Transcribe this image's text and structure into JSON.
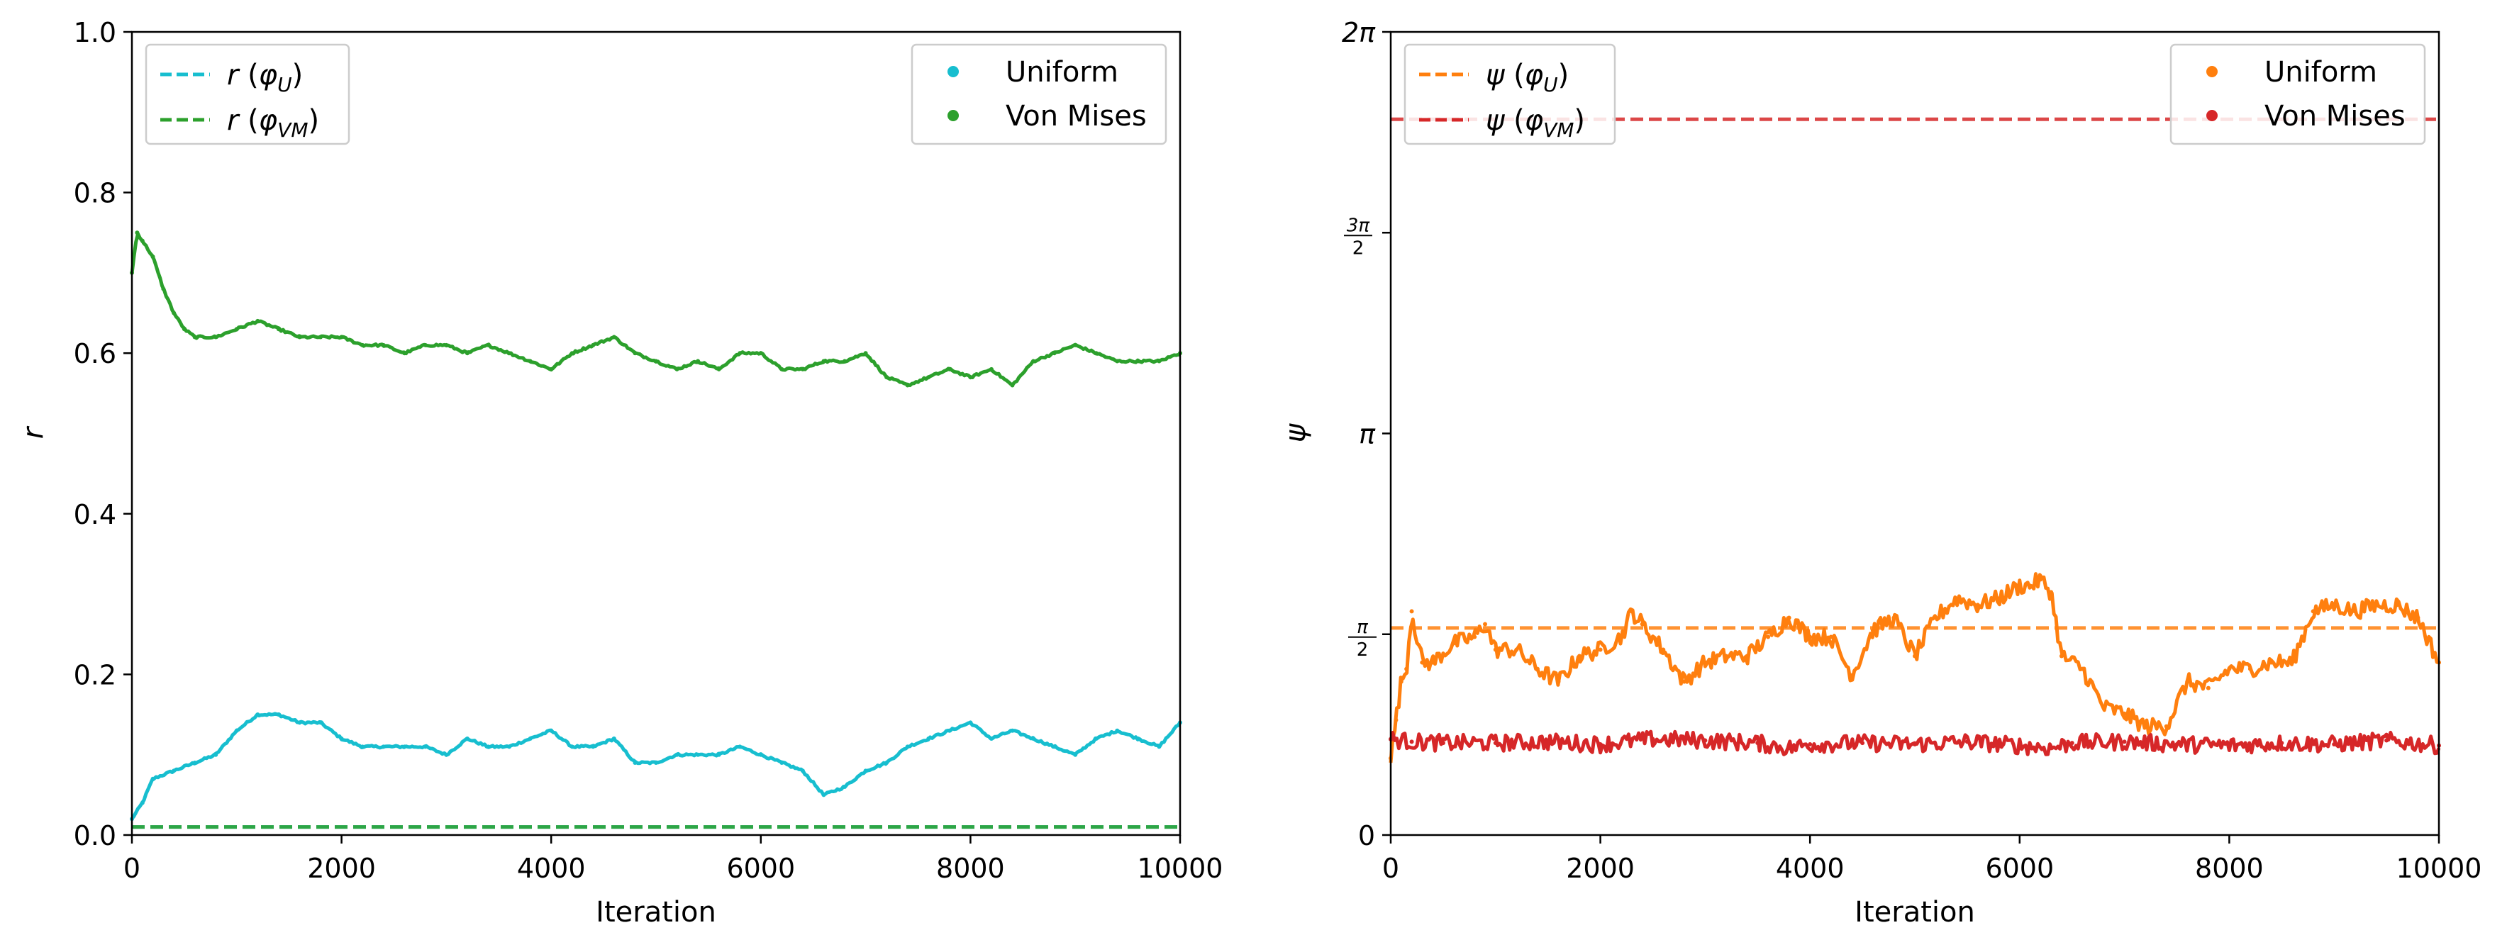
{
  "chart_data": [
    {
      "type": "line",
      "title": "",
      "xlabel": "Iteration",
      "ylabel": "r",
      "xlim": [
        0,
        10000
      ],
      "ylim": [
        0,
        1.0
      ],
      "xticks": [
        0,
        2000,
        4000,
        6000,
        8000,
        10000
      ],
      "xtick_labels": [
        "0",
        "2000",
        "4000",
        "6000",
        "8000",
        "10000"
      ],
      "yticks": [
        0.0,
        0.2,
        0.4,
        0.6,
        0.8,
        1.0
      ],
      "ytick_labels": [
        "0.0",
        "0.2",
        "0.4",
        "0.6",
        "0.8",
        "1.0"
      ],
      "grid": false,
      "series": [
        {
          "name": "Uniform",
          "color": "#17becf",
          "style": "dots",
          "x": [
            0,
            100,
            200,
            400,
            600,
            800,
            1000,
            1200,
            1400,
            1600,
            1800,
            2000,
            2200,
            2400,
            2600,
            2800,
            3000,
            3200,
            3400,
            3600,
            3800,
            4000,
            4200,
            4400,
            4600,
            4800,
            5000,
            5200,
            5400,
            5600,
            5800,
            6000,
            6200,
            6400,
            6600,
            6800,
            7000,
            7200,
            7400,
            7600,
            7800,
            8000,
            8200,
            8400,
            8600,
            8800,
            9000,
            9200,
            9400,
            9600,
            9800,
            10000
          ],
          "y": [
            0.02,
            0.04,
            0.07,
            0.08,
            0.09,
            0.1,
            0.13,
            0.15,
            0.15,
            0.14,
            0.14,
            0.12,
            0.11,
            0.11,
            0.11,
            0.11,
            0.1,
            0.12,
            0.11,
            0.11,
            0.12,
            0.13,
            0.11,
            0.11,
            0.12,
            0.09,
            0.09,
            0.1,
            0.1,
            0.1,
            0.11,
            0.1,
            0.09,
            0.08,
            0.05,
            0.06,
            0.08,
            0.09,
            0.11,
            0.12,
            0.13,
            0.14,
            0.12,
            0.13,
            0.12,
            0.11,
            0.1,
            0.12,
            0.13,
            0.12,
            0.11,
            0.14
          ]
        },
        {
          "name": "Von Mises",
          "color": "#2ca02c",
          "style": "dots",
          "x": [
            0,
            50,
            100,
            200,
            300,
            400,
            500,
            600,
            800,
            1000,
            1200,
            1400,
            1600,
            1800,
            2000,
            2200,
            2400,
            2600,
            2800,
            3000,
            3200,
            3400,
            3600,
            3800,
            4000,
            4200,
            4400,
            4600,
            4800,
            5000,
            5200,
            5400,
            5600,
            5800,
            6000,
            6200,
            6400,
            6600,
            6800,
            7000,
            7200,
            7400,
            7600,
            7800,
            8000,
            8200,
            8400,
            8600,
            8800,
            9000,
            9200,
            9400,
            9600,
            9800,
            10000
          ],
          "y": [
            0.7,
            0.75,
            0.74,
            0.72,
            0.68,
            0.65,
            0.63,
            0.62,
            0.62,
            0.63,
            0.64,
            0.63,
            0.62,
            0.62,
            0.62,
            0.61,
            0.61,
            0.6,
            0.61,
            0.61,
            0.6,
            0.61,
            0.6,
            0.59,
            0.58,
            0.6,
            0.61,
            0.62,
            0.6,
            0.59,
            0.58,
            0.59,
            0.58,
            0.6,
            0.6,
            0.58,
            0.58,
            0.59,
            0.59,
            0.6,
            0.57,
            0.56,
            0.57,
            0.58,
            0.57,
            0.58,
            0.56,
            0.59,
            0.6,
            0.61,
            0.6,
            0.59,
            0.59,
            0.59,
            0.6
          ]
        },
        {
          "name": "r (φU)",
          "color": "#17becf",
          "style": "dashed",
          "x": [
            0,
            10000
          ],
          "y": [
            0.01,
            0.01
          ]
        },
        {
          "name": "r (φVM)",
          "color": "#2ca02c",
          "style": "dashed",
          "x": [
            0,
            10000
          ],
          "y": [
            0.01,
            0.01
          ]
        }
      ],
      "legend_lines": {
        "placement": "upper left",
        "entries": [
          {
            "var": "r",
            "sym": "φ",
            "sub": "U"
          },
          {
            "var": "r",
            "sym": "φ",
            "sub": "VM"
          }
        ]
      },
      "legend_markers": {
        "placement": "upper right",
        "entries": [
          "Uniform",
          "Von Mises"
        ]
      }
    },
    {
      "type": "line",
      "title": "",
      "xlabel": "Iteration",
      "ylabel": "ψ",
      "xlim": [
        0,
        10000
      ],
      "ylim": [
        0,
        6.2832
      ],
      "xticks": [
        0,
        2000,
        4000,
        6000,
        8000,
        10000
      ],
      "xtick_labels": [
        "0",
        "2000",
        "4000",
        "6000",
        "8000",
        "10000"
      ],
      "yticks": [
        0,
        1.5708,
        3.1416,
        4.7124,
        6.2832
      ],
      "ytick_labels": [
        "0",
        "π/2",
        "π",
        "3π/2",
        "2π"
      ],
      "grid": false,
      "series": [
        {
          "name": "Uniform",
          "color": "#ff7f0e",
          "style": "dots",
          "x": [
            0,
            50,
            100,
            150,
            200,
            300,
            400,
            600,
            800,
            900,
            1000,
            1200,
            1400,
            1600,
            1800,
            2000,
            2200,
            2300,
            2400,
            2600,
            2800,
            3000,
            3200,
            3400,
            3600,
            3800,
            4000,
            4200,
            4400,
            4600,
            4800,
            5000,
            5200,
            5400,
            5600,
            5800,
            6000,
            6100,
            6200,
            6300,
            6400,
            6600,
            6800,
            7000,
            7200,
            7400,
            7600,
            7800,
            8000,
            8200,
            8400,
            8600,
            8800,
            9000,
            9200,
            9400,
            9600,
            9800,
            10000
          ],
          "y": [
            0.6,
            0.9,
            1.2,
            1.3,
            1.75,
            1.35,
            1.35,
            1.5,
            1.55,
            1.65,
            1.45,
            1.45,
            1.3,
            1.2,
            1.4,
            1.45,
            1.55,
            1.75,
            1.65,
            1.45,
            1.2,
            1.35,
            1.4,
            1.4,
            1.55,
            1.7,
            1.55,
            1.55,
            1.25,
            1.6,
            1.7,
            1.4,
            1.7,
            1.85,
            1.8,
            1.85,
            1.95,
            1.95,
            2.0,
            1.9,
            1.4,
            1.3,
            1.0,
            0.95,
            0.85,
            0.85,
            1.2,
            1.15,
            1.3,
            1.3,
            1.35,
            1.35,
            1.75,
            1.8,
            1.75,
            1.8,
            1.8,
            1.7,
            1.35
          ]
        },
        {
          "name": "Von Mises",
          "color": "#d62728",
          "style": "dots",
          "x": [
            0,
            200,
            500,
            1000,
            1500,
            2000,
            2500,
            3000,
            3500,
            3800,
            4000,
            4500,
            5000,
            5500,
            6000,
            6300,
            6500,
            7000,
            7500,
            8000,
            8500,
            9000,
            9500,
            10000
          ],
          "y": [
            0.75,
            0.73,
            0.72,
            0.72,
            0.73,
            0.71,
            0.75,
            0.74,
            0.72,
            0.68,
            0.71,
            0.72,
            0.71,
            0.73,
            0.7,
            0.68,
            0.72,
            0.73,
            0.71,
            0.7,
            0.72,
            0.71,
            0.74,
            0.7
          ]
        },
        {
          "name": "ψ (φU)",
          "color": "#ff7f0e",
          "style": "dashed",
          "x": [
            0,
            10000
          ],
          "y": [
            1.62,
            1.62
          ]
        },
        {
          "name": "ψ (φVM)",
          "color": "#d62728",
          "style": "dashed",
          "x": [
            0,
            10000
          ],
          "y": [
            5.6,
            5.6
          ]
        }
      ],
      "legend_lines": {
        "placement": "upper left",
        "entries": [
          {
            "var": "ψ",
            "sym": "φ",
            "sub": "U"
          },
          {
            "var": "ψ",
            "sym": "φ",
            "sub": "VM"
          }
        ]
      },
      "legend_markers": {
        "placement": "upper right",
        "entries": [
          "Uniform",
          "Von Mises"
        ]
      }
    }
  ]
}
